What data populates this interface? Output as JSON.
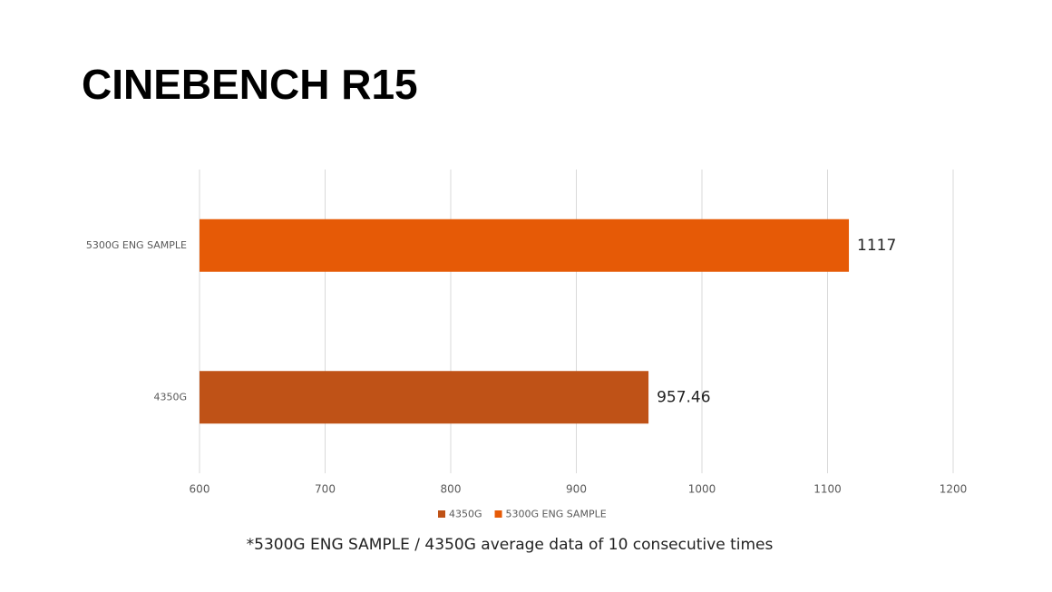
{
  "chart_data": {
    "type": "bar",
    "orientation": "horizontal",
    "title": "CINEBENCH R15",
    "categories": [
      "4350G",
      "5300G ENG SAMPLE"
    ],
    "series": [
      {
        "name": "4350G",
        "color": "#bf5217",
        "values": [
          957.46,
          null
        ]
      },
      {
        "name": "5300G ENG SAMPLE",
        "color": "#e65a06",
        "values": [
          null,
          1117
        ]
      }
    ],
    "xlim": [
      600,
      1200
    ],
    "xticks": [
      600,
      700,
      800,
      900,
      1000,
      1100,
      1200
    ],
    "grid": true,
    "legend": "bottom",
    "footnote": "*5300G ENG SAMPLE / 4350G average data of 10 consecutive times"
  }
}
